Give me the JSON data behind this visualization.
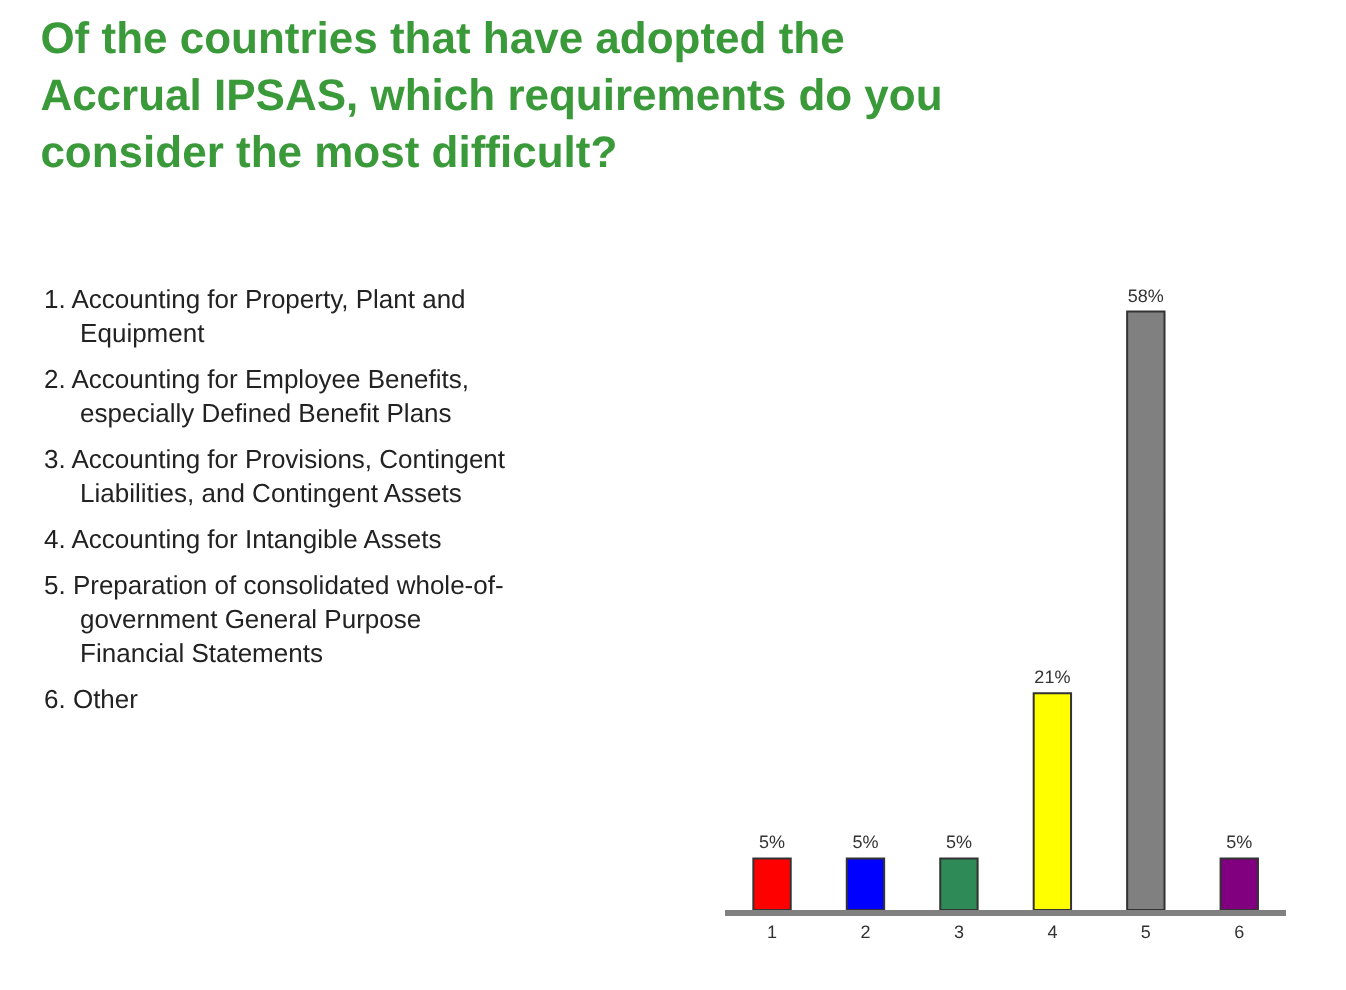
{
  "chart_data": {
    "type": "bar",
    "title": "Of the countries that have adopted the Accrual IPSAS, which requirements do you consider the most difficult?",
    "categories": [
      "1",
      "2",
      "3",
      "4",
      "5",
      "6"
    ],
    "values": [
      5,
      5,
      5,
      21,
      58,
      5
    ],
    "value_labels": [
      "5%",
      "5%",
      "5%",
      "21%",
      "58%",
      "5%"
    ],
    "colors": [
      "#ff0000",
      "#0000ff",
      "#2e8b57",
      "#ffff00",
      "#808080",
      "#800080"
    ],
    "annotations": [
      "1. Accounting for Property, Plant and Equipment",
      "2. Accounting for Employee Benefits, especially Defined Benefit Plans",
      "3. Accounting for Provisions, Contingent Liabilities, and Contingent Assets",
      "4. Accounting for Intangible Assets",
      "5. Preparation of consolidated whole-of-government General Purpose Financial Statements",
      "6. Other"
    ],
    "tick_labels": "x"
  }
}
